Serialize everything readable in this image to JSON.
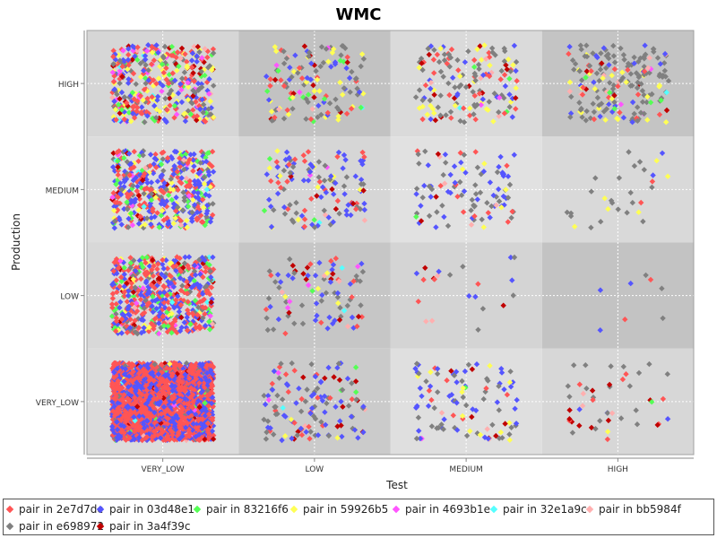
{
  "chart_data": {
    "type": "scatter",
    "title": "WMC",
    "xlabel": "Test",
    "ylabel": "Production",
    "x_categories": [
      "VERY_LOW",
      "LOW",
      "MEDIUM",
      "HIGH"
    ],
    "y_categories": [
      "VERY_LOW",
      "LOW",
      "MEDIUM",
      "HIGH"
    ],
    "jitter": true,
    "grid": true,
    "legend_position": "bottom",
    "cell_shading": {
      "VERY_LOW": {
        "VERY_LOW": "#dcdcdc",
        "LOW": "#cbcbcb",
        "MEDIUM": "#dfdfdf",
        "HIGH": "#d7d7d7"
      },
      "LOW": {
        "VERY_LOW": "#d8d8d8",
        "LOW": "#c6c6c6",
        "MEDIUM": "#d4d4d4",
        "HIGH": "#c3c3c3"
      },
      "MEDIUM": {
        "VERY_LOW": "#dddddd",
        "LOW": "#d6d6d6",
        "MEDIUM": "#e1e1e1",
        "HIGH": "#d9d9d9"
      },
      "HIGH": {
        "VERY_LOW": "#d6d6d6",
        "LOW": "#c2c2c2",
        "MEDIUM": "#dadada",
        "HIGH": "#c4c4c4"
      }
    },
    "series": [
      {
        "name": "pair in 2e7d7dc",
        "color": "#ff5555"
      },
      {
        "name": "pair in 03d48e1",
        "color": "#5555ff"
      },
      {
        "name": "pair in 83216f6",
        "color": "#55ff55"
      },
      {
        "name": "pair in 59926b5",
        "color": "#ffff55"
      },
      {
        "name": "pair in 4693b1e",
        "color": "#ff55ff"
      },
      {
        "name": "pair in 32e1a9c",
        "color": "#55ffff"
      },
      {
        "name": "pair in bb5984f",
        "color": "#ffafaf"
      },
      {
        "name": "pair in e698972",
        "color": "#808080"
      },
      {
        "name": "pair in 3a4f39c",
        "color": "#c00000"
      }
    ],
    "cell_counts": {
      "VERY_LOW": {
        "VERY_LOW": [
          1500,
          900,
          25,
          15,
          10,
          8,
          15,
          60,
          40
        ],
        "LOW": [
          20,
          45,
          3,
          4,
          2,
          1,
          2,
          40,
          12
        ],
        "MEDIUM": [
          8,
          40,
          1,
          12,
          1,
          0,
          3,
          35,
          6
        ],
        "HIGH": [
          8,
          3,
          1,
          1,
          0,
          0,
          3,
          20,
          10
        ]
      },
      "LOW": {
        "VERY_LOW": [
          220,
          180,
          55,
          30,
          15,
          8,
          10,
          60,
          25
        ],
        "LOW": [
          12,
          25,
          1,
          4,
          4,
          2,
          4,
          28,
          10
        ],
        "MEDIUM": [
          4,
          6,
          0,
          0,
          0,
          0,
          3,
          6,
          3
        ],
        "HIGH": [
          2,
          3,
          0,
          0,
          0,
          0,
          0,
          3,
          0
        ]
      },
      "MEDIUM": {
        "VERY_LOW": [
          130,
          170,
          45,
          40,
          10,
          6,
          8,
          55,
          15
        ],
        "LOW": [
          25,
          50,
          3,
          10,
          2,
          1,
          2,
          30,
          6
        ],
        "MEDIUM": [
          12,
          38,
          1,
          5,
          0,
          0,
          4,
          40,
          3
        ],
        "HIGH": [
          2,
          2,
          0,
          6,
          0,
          0,
          0,
          20,
          0
        ]
      },
      "HIGH": {
        "VERY_LOW": [
          110,
          80,
          30,
          60,
          25,
          5,
          10,
          70,
          25
        ],
        "LOW": [
          18,
          20,
          10,
          25,
          3,
          1,
          3,
          45,
          10
        ],
        "MEDIUM": [
          30,
          20,
          3,
          25,
          2,
          1,
          5,
          60,
          12
        ],
        "HIGH": [
          15,
          20,
          5,
          25,
          3,
          1,
          8,
          110,
          6
        ]
      }
    }
  }
}
